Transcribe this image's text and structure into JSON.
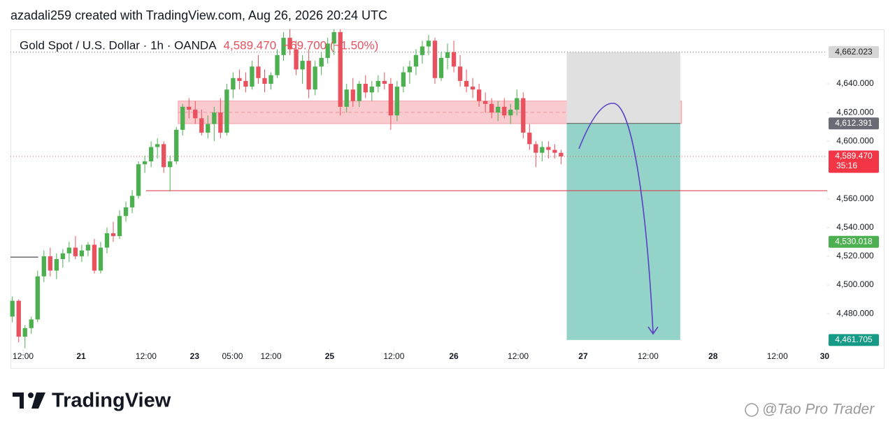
{
  "header": {
    "credit": "azadali259 created with TradingView.com, Aug 26, 2026 20:24 UTC"
  },
  "chart_data": {
    "type": "candlestick",
    "legend": {
      "symbol": "Gold Spot / U.S. Dollar · 1h · OANDA",
      "change": "−69.700 (−1.50%)"
    },
    "up_color": "#4caf50",
    "down_color": "#e8515d",
    "xlim": [
      -0.3,
      129.2
    ],
    "ylim": [
      4455.3,
      4677.9
    ],
    "yticks": [
      {
        "value": 4480,
        "label": "4,480.000"
      },
      {
        "value": 4500,
        "label": "4,500.000"
      },
      {
        "value": 4520,
        "label": "4,520.000"
      },
      {
        "value": 4540,
        "label": "4,540.000"
      },
      {
        "value": 4560,
        "label": "4,560.000"
      },
      {
        "value": 4600,
        "label": "4,600.000"
      },
      {
        "value": 4620,
        "label": "4,620.000"
      },
      {
        "value": 4640,
        "label": "4,640.000"
      }
    ],
    "xticks": [
      {
        "value": 1.7,
        "label": "12:00"
      },
      {
        "value": 10.9,
        "label": "21"
      },
      {
        "value": 21.2,
        "label": "12:00"
      },
      {
        "value": 28.9,
        "label": "23"
      },
      {
        "value": 34.9,
        "label": "05:00"
      },
      {
        "value": 41,
        "label": "12:00"
      },
      {
        "value": 50.3,
        "label": "25"
      },
      {
        "value": 60.5,
        "label": "12:00"
      },
      {
        "value": 70,
        "label": "26"
      },
      {
        "value": 80.2,
        "label": "12:00"
      },
      {
        "value": 90.5,
        "label": "27"
      },
      {
        "value": 100.8,
        "label": "12:00"
      },
      {
        "value": 111.1,
        "label": "28"
      },
      {
        "value": 121.3,
        "label": "12:00"
      },
      {
        "value": 128.8,
        "label": "30"
      }
    ],
    "ohlc": [
      [
        4478,
        4492,
        4474,
        4489
      ],
      [
        4489,
        4490,
        4460,
        4464
      ],
      [
        4464,
        4472,
        4456,
        4470
      ],
      [
        4470,
        4478,
        4466,
        4476
      ],
      [
        4476,
        4510,
        4474,
        4506
      ],
      [
        4506,
        4524,
        4502,
        4520
      ],
      [
        4520,
        4526,
        4506,
        4510
      ],
      [
        4510,
        4522,
        4504,
        4518
      ],
      [
        4518,
        4525,
        4512,
        4522
      ],
      [
        4522,
        4530,
        4516,
        4526
      ],
      [
        4526,
        4534,
        4518,
        4520
      ],
      [
        4520,
        4528,
        4516,
        4524
      ],
      [
        4524,
        4530,
        4520,
        4528
      ],
      [
        4528,
        4532,
        4508,
        4510
      ],
      [
        4510,
        4530,
        4508,
        4526
      ],
      [
        4526,
        4540,
        4522,
        4536
      ],
      [
        4536,
        4544,
        4530,
        4534
      ],
      [
        4534,
        4552,
        4532,
        4548
      ],
      [
        4548,
        4558,
        4544,
        4554
      ],
      [
        4554,
        4566,
        4550,
        4562
      ],
      [
        4562,
        4586,
        4560,
        4584
      ],
      [
        4584,
        4590,
        4578,
        4586
      ],
      [
        4586,
        4600,
        4582,
        4596
      ],
      [
        4596,
        4602,
        4588,
        4598
      ],
      [
        4598,
        4600,
        4578,
        4582
      ],
      [
        4582,
        4590,
        4565,
        4586
      ],
      [
        4586,
        4610,
        4584,
        4608
      ],
      [
        4608,
        4626,
        4604,
        4624
      ],
      [
        4624,
        4630,
        4616,
        4622
      ],
      [
        4622,
        4628,
        4612,
        4616
      ],
      [
        4616,
        4622,
        4604,
        4606
      ],
      [
        4606,
        4618,
        4602,
        4612
      ],
      [
        4612,
        4624,
        4600,
        4620
      ],
      [
        4620,
        4630,
        4602,
        4606
      ],
      [
        4606,
        4640,
        4604,
        4636
      ],
      [
        4636,
        4648,
        4630,
        4644
      ],
      [
        4644,
        4650,
        4636,
        4642
      ],
      [
        4642,
        4648,
        4634,
        4638
      ],
      [
        4638,
        4656,
        4636,
        4652
      ],
      [
        4652,
        4660,
        4640,
        4644
      ],
      [
        4644,
        4650,
        4634,
        4640
      ],
      [
        4640,
        4648,
        4636,
        4646
      ],
      [
        4646,
        4664,
        4644,
        4660
      ],
      [
        4660,
        4676,
        4656,
        4672
      ],
      [
        4672,
        4678,
        4660,
        4664
      ],
      [
        4664,
        4670,
        4646,
        4650
      ],
      [
        4650,
        4660,
        4640,
        4656
      ],
      [
        4656,
        4664,
        4630,
        4636
      ],
      [
        4636,
        4656,
        4632,
        4652
      ],
      [
        4652,
        4662,
        4646,
        4658
      ],
      [
        4658,
        4672,
        4654,
        4668
      ],
      [
        4668,
        4678,
        4660,
        4676
      ],
      [
        4676,
        4678,
        4618,
        4624
      ],
      [
        4624,
        4640,
        4620,
        4636
      ],
      [
        4636,
        4644,
        4624,
        4628
      ],
      [
        4628,
        4642,
        4624,
        4640
      ],
      [
        4640,
        4646,
        4630,
        4634
      ],
      [
        4634,
        4642,
        4628,
        4638
      ],
      [
        4638,
        4646,
        4634,
        4642
      ],
      [
        4642,
        4648,
        4636,
        4640
      ],
      [
        4640,
        4644,
        4608,
        4618
      ],
      [
        4618,
        4642,
        4614,
        4638
      ],
      [
        4638,
        4652,
        4634,
        4648
      ],
      [
        4648,
        4656,
        4640,
        4652
      ],
      [
        4652,
        4664,
        4646,
        4660
      ],
      [
        4660,
        4670,
        4654,
        4666
      ],
      [
        4666,
        4674,
        4660,
        4670
      ],
      [
        4670,
        4672,
        4640,
        4644
      ],
      [
        4644,
        4662,
        4642,
        4658
      ],
      [
        4658,
        4668,
        4650,
        4662
      ],
      [
        4662,
        4670,
        4648,
        4652
      ],
      [
        4652,
        4660,
        4638,
        4642
      ],
      [
        4642,
        4650,
        4634,
        4638
      ],
      [
        4638,
        4644,
        4630,
        4636
      ],
      [
        4636,
        4640,
        4624,
        4628
      ],
      [
        4628,
        4634,
        4620,
        4626
      ],
      [
        4626,
        4630,
        4616,
        4620
      ],
      [
        4620,
        4628,
        4614,
        4624
      ],
      [
        4624,
        4630,
        4616,
        4618
      ],
      [
        4618,
        4626,
        4612,
        4622
      ],
      [
        4622,
        4636,
        4618,
        4630
      ],
      [
        4630,
        4634,
        4602,
        4606
      ],
      [
        4606,
        4612,
        4594,
        4598
      ],
      [
        4598,
        4600,
        4582,
        4592
      ],
      [
        4592,
        4600,
        4586,
        4596
      ],
      [
        4596,
        4600,
        4588,
        4594
      ],
      [
        4594,
        4598,
        4588,
        4592
      ],
      [
        4592,
        4594,
        4584,
        4589.47
      ]
    ],
    "zone": {
      "x": [
        26.3,
        106.1
      ],
      "top": 4628,
      "bottom": 4612.3,
      "color": "#f8c1c5"
    },
    "position": {
      "x": [
        87.9,
        105.9
      ],
      "stop": 4662.023,
      "entry": 4612.391,
      "target": 4461.705,
      "stop_color": "#e0e0e0",
      "target_color": "#93d3c8"
    },
    "hlines": [
      {
        "value": 4662.023,
        "color": "#8a8a8a",
        "dash": "1 3"
      },
      {
        "value": 4589.47,
        "color": "#e8515d",
        "dash": "1 3"
      },
      {
        "value": 4565.6,
        "color": "#d9323e",
        "from": 21.2
      },
      {
        "value": 4519.4,
        "color": "#222222",
        "to": 4.1
      }
    ],
    "price_labels": [
      {
        "value": 4662.023,
        "label": "4,662.023",
        "bg": "#d6d6d6",
        "fg": "#222222"
      },
      {
        "value": 4612.391,
        "label": "4,612.391",
        "bg": "#6b6b76",
        "fg": "#ffffff"
      },
      {
        "value": 4589.47,
        "label": "4,589.470",
        "bg": "#f23645",
        "fg": "#ffffff",
        "countdown": "35:16"
      },
      {
        "value": 4530.018,
        "label": "4,530.018",
        "bg": "#4caf50",
        "fg": "#ffffff"
      },
      {
        "value": 4461.705,
        "label": "4,461.705",
        "bg": "#159a86",
        "fg": "#ffffff"
      }
    ]
  },
  "footer": {
    "brand": "TradingView",
    "watermark": "@Tao Pro Trader"
  }
}
